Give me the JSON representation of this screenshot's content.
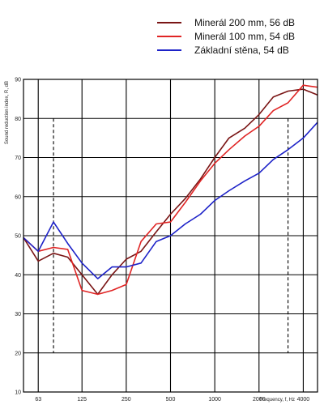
{
  "chart_data": {
    "type": "line",
    "xlabel": "Frequency, f, Hz",
    "xlabel_unit": "Hz",
    "ylabel": "Sound reduction index, R, dB",
    "ylabel_unit": "dB",
    "x_scale": "log",
    "xlim": [
      50,
      5000
    ],
    "ylim": [
      10,
      90
    ],
    "x_ticks": [
      "63",
      "125",
      "250",
      "500",
      "1000",
      "2000",
      "4000"
    ],
    "y_ticks": [
      "10",
      "20",
      "30",
      "40",
      "50",
      "60",
      "70",
      "80",
      "90"
    ],
    "grid": true,
    "legend": "top-right",
    "x": [
      50,
      63,
      80,
      100,
      125,
      160,
      200,
      250,
      315,
      400,
      500,
      630,
      800,
      1000,
      1250,
      1600,
      2000,
      2500,
      3150,
      4000,
      5000
    ],
    "series": [
      {
        "name": "Minerál 200 mm, 56 dB",
        "color": "#7a1515",
        "values": [
          49.5,
          43.5,
          45.5,
          44.5,
          40,
          35,
          40,
          44,
          46,
          51,
          55.5,
          59.5,
          64.5,
          70,
          75,
          77.5,
          81,
          85.5,
          87,
          87.5,
          86
        ]
      },
      {
        "name": "Minerál 100 mm, 54 dB",
        "color": "#e02424",
        "values": [
          49.5,
          46,
          47,
          46.5,
          36,
          35,
          36,
          37.5,
          48.5,
          53,
          53.5,
          58.5,
          64,
          68.5,
          72,
          75.5,
          78,
          82,
          84,
          88.5,
          88
        ]
      },
      {
        "name": "Základní stěna, 54 dB",
        "color": "#1d22c8",
        "values": [
          49.5,
          46,
          53.5,
          48,
          43,
          39,
          42,
          42,
          43,
          48.5,
          50,
          53,
          55.5,
          59,
          61.5,
          64,
          66,
          69.5,
          72,
          75,
          79
        ]
      }
    ]
  }
}
